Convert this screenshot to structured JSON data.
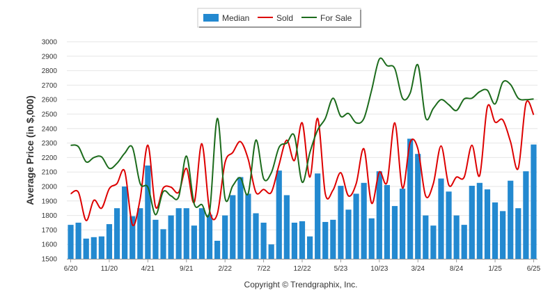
{
  "chart_data": {
    "type": "bar",
    "ylabel": "Average Price (in $,000)",
    "ylim": [
      1500,
      3000
    ],
    "y_ticks": [
      "1500",
      "1600",
      "1700",
      "1800",
      "1900",
      "2000",
      "2100",
      "2200",
      "2300",
      "2400",
      "2500",
      "2600",
      "2700",
      "2800",
      "2900",
      "3000"
    ],
    "x_ticks": [
      {
        "label": "6/20",
        "index": 0
      },
      {
        "label": "11/20",
        "index": 5
      },
      {
        "label": "4/21",
        "index": 10
      },
      {
        "label": "9/21",
        "index": 15
      },
      {
        "label": "2/22",
        "index": 20
      },
      {
        "label": "7/22",
        "index": 25
      },
      {
        "label": "12/22",
        "index": 30
      },
      {
        "label": "5/23",
        "index": 35
      },
      {
        "label": "10/23",
        "index": 40
      },
      {
        "label": "3/24",
        "index": 45
      },
      {
        "label": "8/24",
        "index": 50
      },
      {
        "label": "1/25",
        "index": 55
      },
      {
        "label": "6/25",
        "index": 60
      }
    ],
    "grid": "horizontal",
    "legend_position": "top-center",
    "series": [
      {
        "name": "Median",
        "type": "bar",
        "color": "#2389d0",
        "values": [
          1735,
          1750,
          1640,
          1650,
          1655,
          1740,
          1850,
          2000,
          1795,
          1850,
          2145,
          1770,
          1705,
          1800,
          1850,
          1850,
          1730,
          1850,
          1805,
          1625,
          1800,
          1940,
          2065,
          1950,
          1815,
          1750,
          1600,
          2110,
          1940,
          1750,
          1760,
          1655,
          2090,
          1755,
          1770,
          2005,
          1840,
          1950,
          2025,
          1780,
          2105,
          2010,
          1865,
          1985,
          2330,
          2225,
          1800,
          1730,
          2055,
          1965,
          1800,
          1735,
          2005,
          2025,
          1980,
          1890,
          1830,
          2040,
          1850,
          2105,
          2290
        ]
      },
      {
        "name": "Sold",
        "type": "line",
        "color": "#dd0000",
        "values": [
          1950,
          1960,
          1765,
          1905,
          1850,
          1985,
          2020,
          2105,
          1735,
          1915,
          2285,
          1860,
          1990,
          1995,
          1960,
          2125,
          1890,
          2295,
          1835,
          1810,
          2165,
          2235,
          2310,
          2190,
          1960,
          1980,
          1960,
          2150,
          2320,
          2180,
          2440,
          2065,
          2470,
          1950,
          1975,
          2095,
          1935,
          2020,
          2260,
          1885,
          2100,
          2030,
          2440,
          1990,
          2305,
          2260,
          1935,
          2020,
          2280,
          2010,
          2065,
          2065,
          2285,
          2075,
          2550,
          2445,
          2460,
          2310,
          2125,
          2575,
          2495
        ]
      },
      {
        "name": "For Sale",
        "type": "line",
        "color": "#1c6b1c",
        "values": [
          2285,
          2275,
          2170,
          2200,
          2205,
          2125,
          2160,
          2230,
          2270,
          2020,
          1995,
          1805,
          1965,
          1935,
          1930,
          2210,
          1880,
          1875,
          1825,
          2470,
          1920,
          2005,
          2060,
          1950,
          2320,
          2055,
          2095,
          2270,
          2300,
          2350,
          2030,
          2235,
          2390,
          2470,
          2610,
          2485,
          2505,
          2440,
          2470,
          2665,
          2880,
          2835,
          2815,
          2610,
          2645,
          2840,
          2475,
          2540,
          2600,
          2565,
          2525,
          2605,
          2610,
          2655,
          2665,
          2570,
          2720,
          2705,
          2610,
          2600,
          2605
        ]
      }
    ]
  },
  "credit": "Copyright © Trendgraphix, Inc."
}
